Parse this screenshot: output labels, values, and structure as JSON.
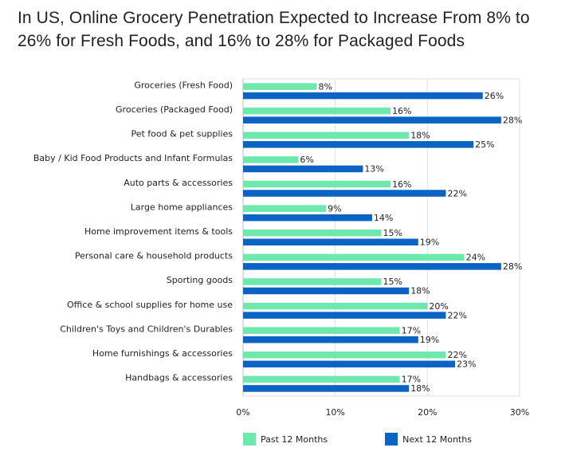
{
  "chart_data": {
    "type": "bar",
    "orientation": "horizontal",
    "title": "In US, Online Grocery Penetration Expected to Increase From 8% to 26% for Fresh Foods, and 16% to 28% for Packaged Foods",
    "categories": [
      "Groceries (Fresh Food)",
      "Groceries (Packaged Food)",
      "Pet food & pet supplies",
      "Baby / Kid Food Products and Infant Formulas",
      "Auto parts & accessories",
      "Large home appliances",
      "Home improvement items & tools",
      "Personal care & household products",
      "Sporting goods",
      "Office & school supplies for home use",
      "Children's Toys and Children's Durables",
      "Home furnishings & accessories",
      "Handbags & accessories"
    ],
    "series": [
      {
        "name": "Past 12 Months",
        "color": "#6ee8ac",
        "values": [
          8,
          16,
          18,
          6,
          16,
          9,
          15,
          24,
          15,
          20,
          17,
          22,
          17
        ]
      },
      {
        "name": "Next 12 Months",
        "color": "#0b63c4",
        "values": [
          26,
          28,
          25,
          13,
          22,
          14,
          19,
          28,
          18,
          22,
          19,
          23,
          18
        ]
      }
    ],
    "xlim": [
      0,
      30
    ],
    "xticks": [
      0,
      10,
      20,
      30
    ],
    "tick_labels": [
      "0%",
      "10%",
      "20%",
      "30%"
    ],
    "value_suffix": "%",
    "grid": true,
    "legend": "bottom"
  }
}
